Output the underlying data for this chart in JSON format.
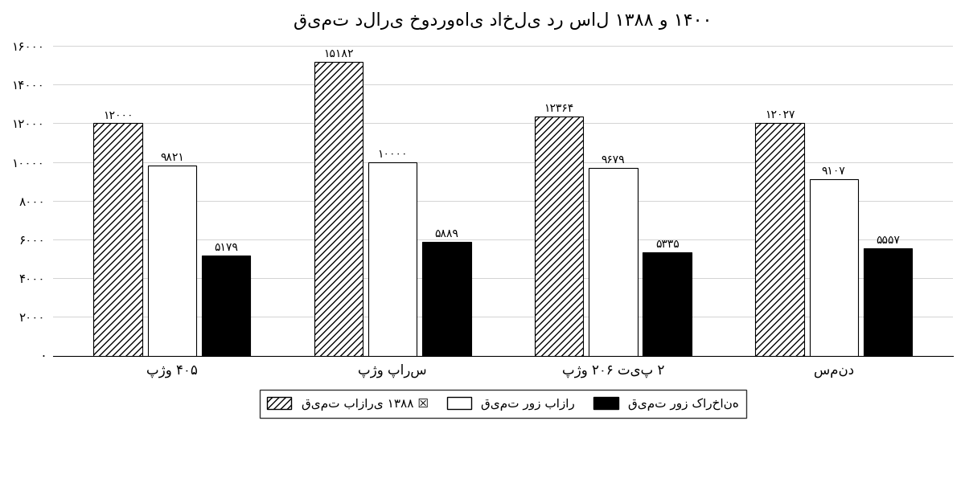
{
  "title": "قیمت دلاری خودروهای داخلی در سال ۱۳۸۸ و ۱۴۰۰",
  "categories": [
    "پژو ۴۰۵",
    "پژو پارس",
    "پژو ۲۰۶ تیپ ۲",
    "سمند"
  ],
  "series": {
    "market_1388": [
      12000,
      15182,
      12364,
      12027
    ],
    "market_today": [
      9821,
      10000,
      9679,
      9107
    ],
    "factory": [
      5179,
      5889,
      5335,
      5557
    ]
  },
  "legend_labels": [
    "قیمت بازاری ۱۳۸۸",
    "قیمت روز بازار",
    "قیمت روز کارخانه"
  ],
  "ylim": [
    0,
    16000
  ],
  "ytick_step": 2000,
  "background_color": "#ffffff",
  "bar_width": 0.22,
  "bar_gap": 0.025
}
